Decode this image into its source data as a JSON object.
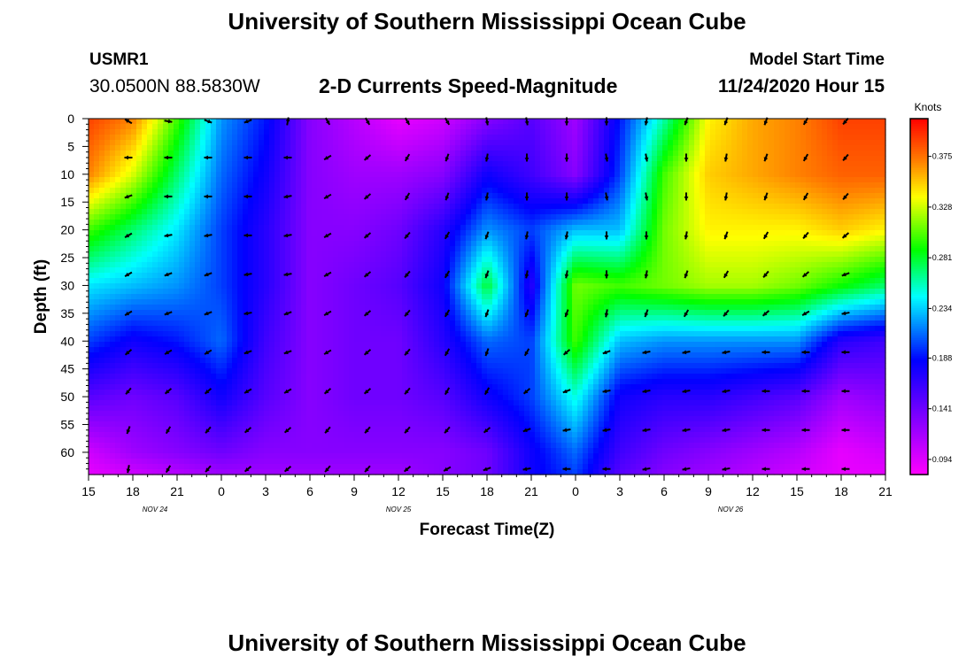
{
  "header": {
    "title": "University of Southern Mississippi Ocean Cube",
    "station_id": "USMR1",
    "station_coords": "30.0500N 88.5830W",
    "plot_title": "2-D Currents Speed-Magnitude",
    "model_start_label": "Model Start Time",
    "model_start_value": "11/24/2020 Hour 15"
  },
  "footer": {
    "title": "University of Southern Mississippi Ocean Cube"
  },
  "chart_data": {
    "type": "heatmap",
    "xlabel": "Forecast Time(Z)",
    "ylabel": "Depth (ft)",
    "x_tick_labels": [
      "15",
      "18",
      "21",
      "0",
      "3",
      "6",
      "9",
      "12",
      "15",
      "18",
      "21",
      "0",
      "3",
      "6",
      "9",
      "12",
      "15",
      "18",
      "21"
    ],
    "date_labels": [
      {
        "label": "NOV  24",
        "tick": 1.5
      },
      {
        "label": "NOV  25",
        "tick": 7
      },
      {
        "label": "NOV  26",
        "tick": 14.5
      }
    ],
    "y_tick_labels": [
      "0",
      "5",
      "10",
      "15",
      "20",
      "25",
      "30",
      "35",
      "40",
      "45",
      "50",
      "55",
      "60"
    ],
    "ylim": [
      0,
      64
    ],
    "colorbar": {
      "unit": "Knots",
      "ticks": [
        "0.094",
        "0.141",
        "0.188",
        "0.234",
        "0.281",
        "0.328",
        "0.375"
      ],
      "range": [
        0.08,
        0.41
      ]
    },
    "depths_ft": [
      0,
      10,
      20,
      30,
      40,
      50,
      60,
      64
    ],
    "speed_knots": [
      [
        0.39,
        0.37,
        0.3,
        0.22,
        0.19,
        0.13,
        0.11,
        0.09,
        0.1,
        0.13,
        0.15,
        0.12,
        0.19,
        0.26,
        0.34,
        0.36,
        0.37,
        0.39,
        0.39
      ],
      [
        0.37,
        0.33,
        0.27,
        0.21,
        0.18,
        0.13,
        0.12,
        0.12,
        0.13,
        0.18,
        0.16,
        0.13,
        0.2,
        0.3,
        0.35,
        0.36,
        0.37,
        0.38,
        0.38
      ],
      [
        0.3,
        0.27,
        0.24,
        0.2,
        0.17,
        0.13,
        0.13,
        0.14,
        0.17,
        0.22,
        0.2,
        0.23,
        0.23,
        0.31,
        0.34,
        0.34,
        0.34,
        0.35,
        0.34
      ],
      [
        0.24,
        0.23,
        0.22,
        0.2,
        0.17,
        0.13,
        0.14,
        0.15,
        0.18,
        0.28,
        0.17,
        0.31,
        0.3,
        0.31,
        0.32,
        0.32,
        0.31,
        0.29,
        0.27
      ],
      [
        0.2,
        0.18,
        0.19,
        0.21,
        0.16,
        0.13,
        0.14,
        0.14,
        0.17,
        0.21,
        0.2,
        0.3,
        0.23,
        0.22,
        0.22,
        0.22,
        0.22,
        0.17,
        0.16
      ],
      [
        0.15,
        0.14,
        0.15,
        0.18,
        0.15,
        0.13,
        0.14,
        0.14,
        0.15,
        0.18,
        0.2,
        0.25,
        0.18,
        0.17,
        0.17,
        0.16,
        0.15,
        0.12,
        0.13
      ],
      [
        0.1,
        0.12,
        0.13,
        0.14,
        0.13,
        0.13,
        0.13,
        0.13,
        0.13,
        0.14,
        0.18,
        0.21,
        0.16,
        0.14,
        0.13,
        0.12,
        0.11,
        0.09,
        0.1
      ],
      [
        0.09,
        0.1,
        0.11,
        0.12,
        0.12,
        0.12,
        0.12,
        0.12,
        0.13,
        0.14,
        0.18,
        0.2,
        0.15,
        0.13,
        0.12,
        0.11,
        0.1,
        0.09,
        0.09
      ]
    ],
    "vector_depths_ft": [
      0,
      7,
      14,
      21,
      28,
      35,
      42,
      49,
      56,
      63
    ],
    "vector_direction_deg": [
      [
        300,
        100,
        110,
        250,
        10,
        150,
        150,
        150,
        150,
        170,
        170,
        180,
        180,
        190,
        200,
        200,
        200,
        210,
        220,
        260
      ],
      [
        270,
        270,
        270,
        270,
        270,
        240,
        230,
        210,
        200,
        190,
        180,
        180,
        170,
        170,
        180,
        190,
        200,
        210,
        220,
        250
      ],
      [
        250,
        270,
        270,
        270,
        260,
        240,
        230,
        210,
        200,
        190,
        180,
        180,
        170,
        170,
        180,
        190,
        200,
        210,
        220,
        260
      ],
      [
        240,
        260,
        260,
        270,
        260,
        240,
        230,
        220,
        210,
        200,
        190,
        190,
        180,
        180,
        190,
        200,
        210,
        220,
        230,
        260
      ],
      [
        240,
        250,
        250,
        260,
        260,
        240,
        230,
        220,
        210,
        200,
        190,
        190,
        180,
        190,
        200,
        210,
        220,
        230,
        250,
        260
      ],
      [
        240,
        250,
        250,
        260,
        250,
        240,
        230,
        220,
        210,
        200,
        200,
        200,
        190,
        200,
        210,
        220,
        230,
        240,
        260,
        270
      ],
      [
        230,
        240,
        240,
        250,
        250,
        240,
        230,
        220,
        210,
        200,
        210,
        230,
        250,
        260,
        260,
        260,
        270,
        270,
        270,
        270
      ],
      [
        220,
        230,
        230,
        240,
        240,
        230,
        230,
        220,
        210,
        210,
        230,
        250,
        260,
        260,
        260,
        260,
        270,
        270,
        270,
        270
      ],
      [
        200,
        210,
        220,
        230,
        230,
        220,
        220,
        220,
        220,
        230,
        250,
        260,
        260,
        260,
        260,
        260,
        270,
        270,
        270,
        270
      ],
      [
        190,
        210,
        220,
        230,
        230,
        220,
        220,
        230,
        240,
        250,
        260,
        270,
        270,
        260,
        260,
        260,
        270,
        270,
        270,
        270
      ]
    ]
  }
}
